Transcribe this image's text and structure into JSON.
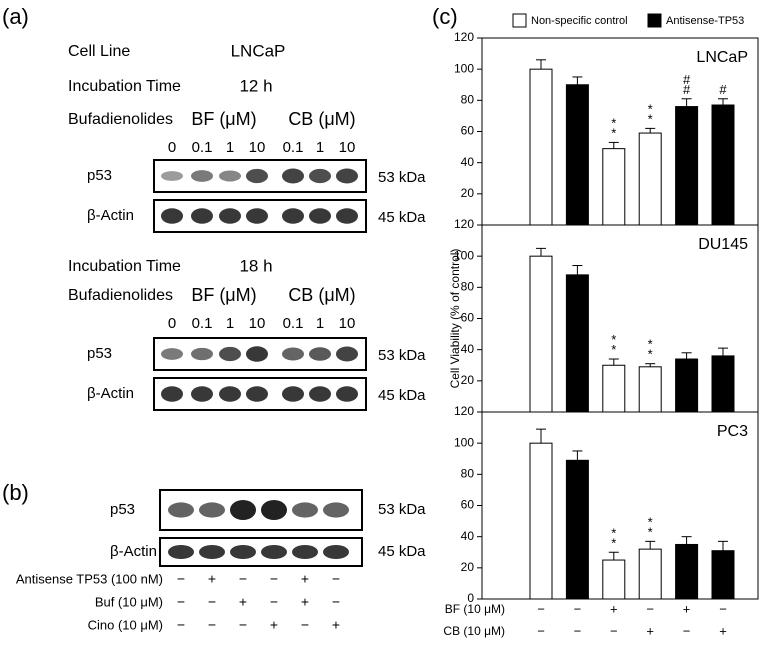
{
  "panel_a": {
    "label": "(a)",
    "cell_line_label": "Cell Line",
    "cell_line": "LNCaP",
    "blocks": [
      {
        "time_label": "Incubation Time",
        "time": "12 h",
        "treatment_label": "Bufadienolides",
        "bf": "BF (μM)",
        "cb": "CB (μM)",
        "lanes": [
          "0",
          "0.1",
          "1",
          "10",
          "0.1",
          "1",
          "10"
        ],
        "rows": [
          {
            "name": "p53",
            "size": "53 kDa"
          },
          {
            "name": "β-Actin",
            "size": "45 kDa"
          }
        ]
      },
      {
        "time_label": "Incubation Time",
        "time": "18 h",
        "treatment_label": "Bufadienolides",
        "bf": "BF (μM)",
        "cb": "CB (μM)",
        "lanes": [
          "0",
          "0.1",
          "1",
          "10",
          "0.1",
          "1",
          "10"
        ],
        "rows": [
          {
            "name": "p53",
            "size": "53 kDa"
          },
          {
            "name": "β-Actin",
            "size": "45 kDa"
          }
        ]
      }
    ]
  },
  "panel_b": {
    "label": "(b)",
    "rows": [
      {
        "name": "p53",
        "size": "53 kDa"
      },
      {
        "name": "β-Actin",
        "size": "45 kDa"
      }
    ],
    "treatments": [
      {
        "label": "Antisense TP53 (100 nM)",
        "signs": [
          "−",
          "+",
          "−",
          "−",
          "+",
          "−"
        ]
      },
      {
        "label": "Buf (10 μM)",
        "signs": [
          "−",
          "−",
          "+",
          "−",
          "+",
          "−"
        ]
      },
      {
        "label": "Cino (10 μM)",
        "signs": [
          "−",
          "−",
          "−",
          "+",
          "−",
          "+"
        ]
      }
    ]
  },
  "panel_c": {
    "label": "(c)"
  },
  "chart_data": [
    {
      "type": "bar",
      "title": "LNCaP",
      "ylim": [
        0,
        120
      ],
      "yticks": [
        20,
        40,
        60,
        80,
        100,
        120
      ],
      "series": [
        {
          "name": "Non-specific control",
          "color": "#ffffff",
          "values": [
            100,
            null,
            49,
            59,
            null,
            null
          ],
          "errors": [
            6,
            null,
            4,
            3,
            null,
            null
          ]
        },
        {
          "name": "Antisense-TP53",
          "color": "#000000",
          "values": [
            null,
            90,
            null,
            null,
            76,
            77
          ],
          "errors": [
            null,
            5,
            null,
            null,
            5,
            4
          ]
        }
      ],
      "annotations": [
        null,
        null,
        "**",
        "**",
        "##",
        "#"
      ]
    },
    {
      "type": "bar",
      "title": "DU145",
      "ylabel": "Cell Viability (% of control)",
      "ylim": [
        0,
        120
      ],
      "yticks": [
        20,
        40,
        60,
        80,
        100,
        120
      ],
      "series": [
        {
          "name": "Non-specific control",
          "color": "#ffffff",
          "values": [
            100,
            null,
            30,
            29,
            null,
            null
          ],
          "errors": [
            5,
            null,
            4,
            2,
            null,
            null
          ]
        },
        {
          "name": "Antisense-TP53",
          "color": "#000000",
          "values": [
            null,
            88,
            null,
            null,
            34,
            36
          ],
          "errors": [
            null,
            6,
            null,
            null,
            4,
            5
          ]
        }
      ],
      "annotations": [
        null,
        null,
        "**",
        "**",
        null,
        null
      ]
    },
    {
      "type": "bar",
      "title": "PC3",
      "ylim": [
        0,
        120
      ],
      "yticks": [
        0,
        20,
        40,
        60,
        80,
        100,
        120
      ],
      "series": [
        {
          "name": "Non-specific control",
          "color": "#ffffff",
          "values": [
            100,
            null,
            25,
            32,
            null,
            null
          ],
          "errors": [
            9,
            null,
            5,
            5,
            null,
            null
          ]
        },
        {
          "name": "Antisense-TP53",
          "color": "#000000",
          "values": [
            null,
            89,
            null,
            null,
            35,
            31
          ],
          "errors": [
            null,
            6,
            null,
            null,
            5,
            6
          ]
        }
      ],
      "annotations": [
        null,
        null,
        "**",
        "**",
        null,
        null
      ],
      "condition_rows": [
        {
          "label": "BF (10 μM)",
          "signs": [
            "−",
            "−",
            "+",
            "−",
            "+",
            "−"
          ]
        },
        {
          "label": "CB (10 μM)",
          "signs": [
            "−",
            "−",
            "−",
            "+",
            "−",
            "+"
          ]
        }
      ]
    }
  ]
}
